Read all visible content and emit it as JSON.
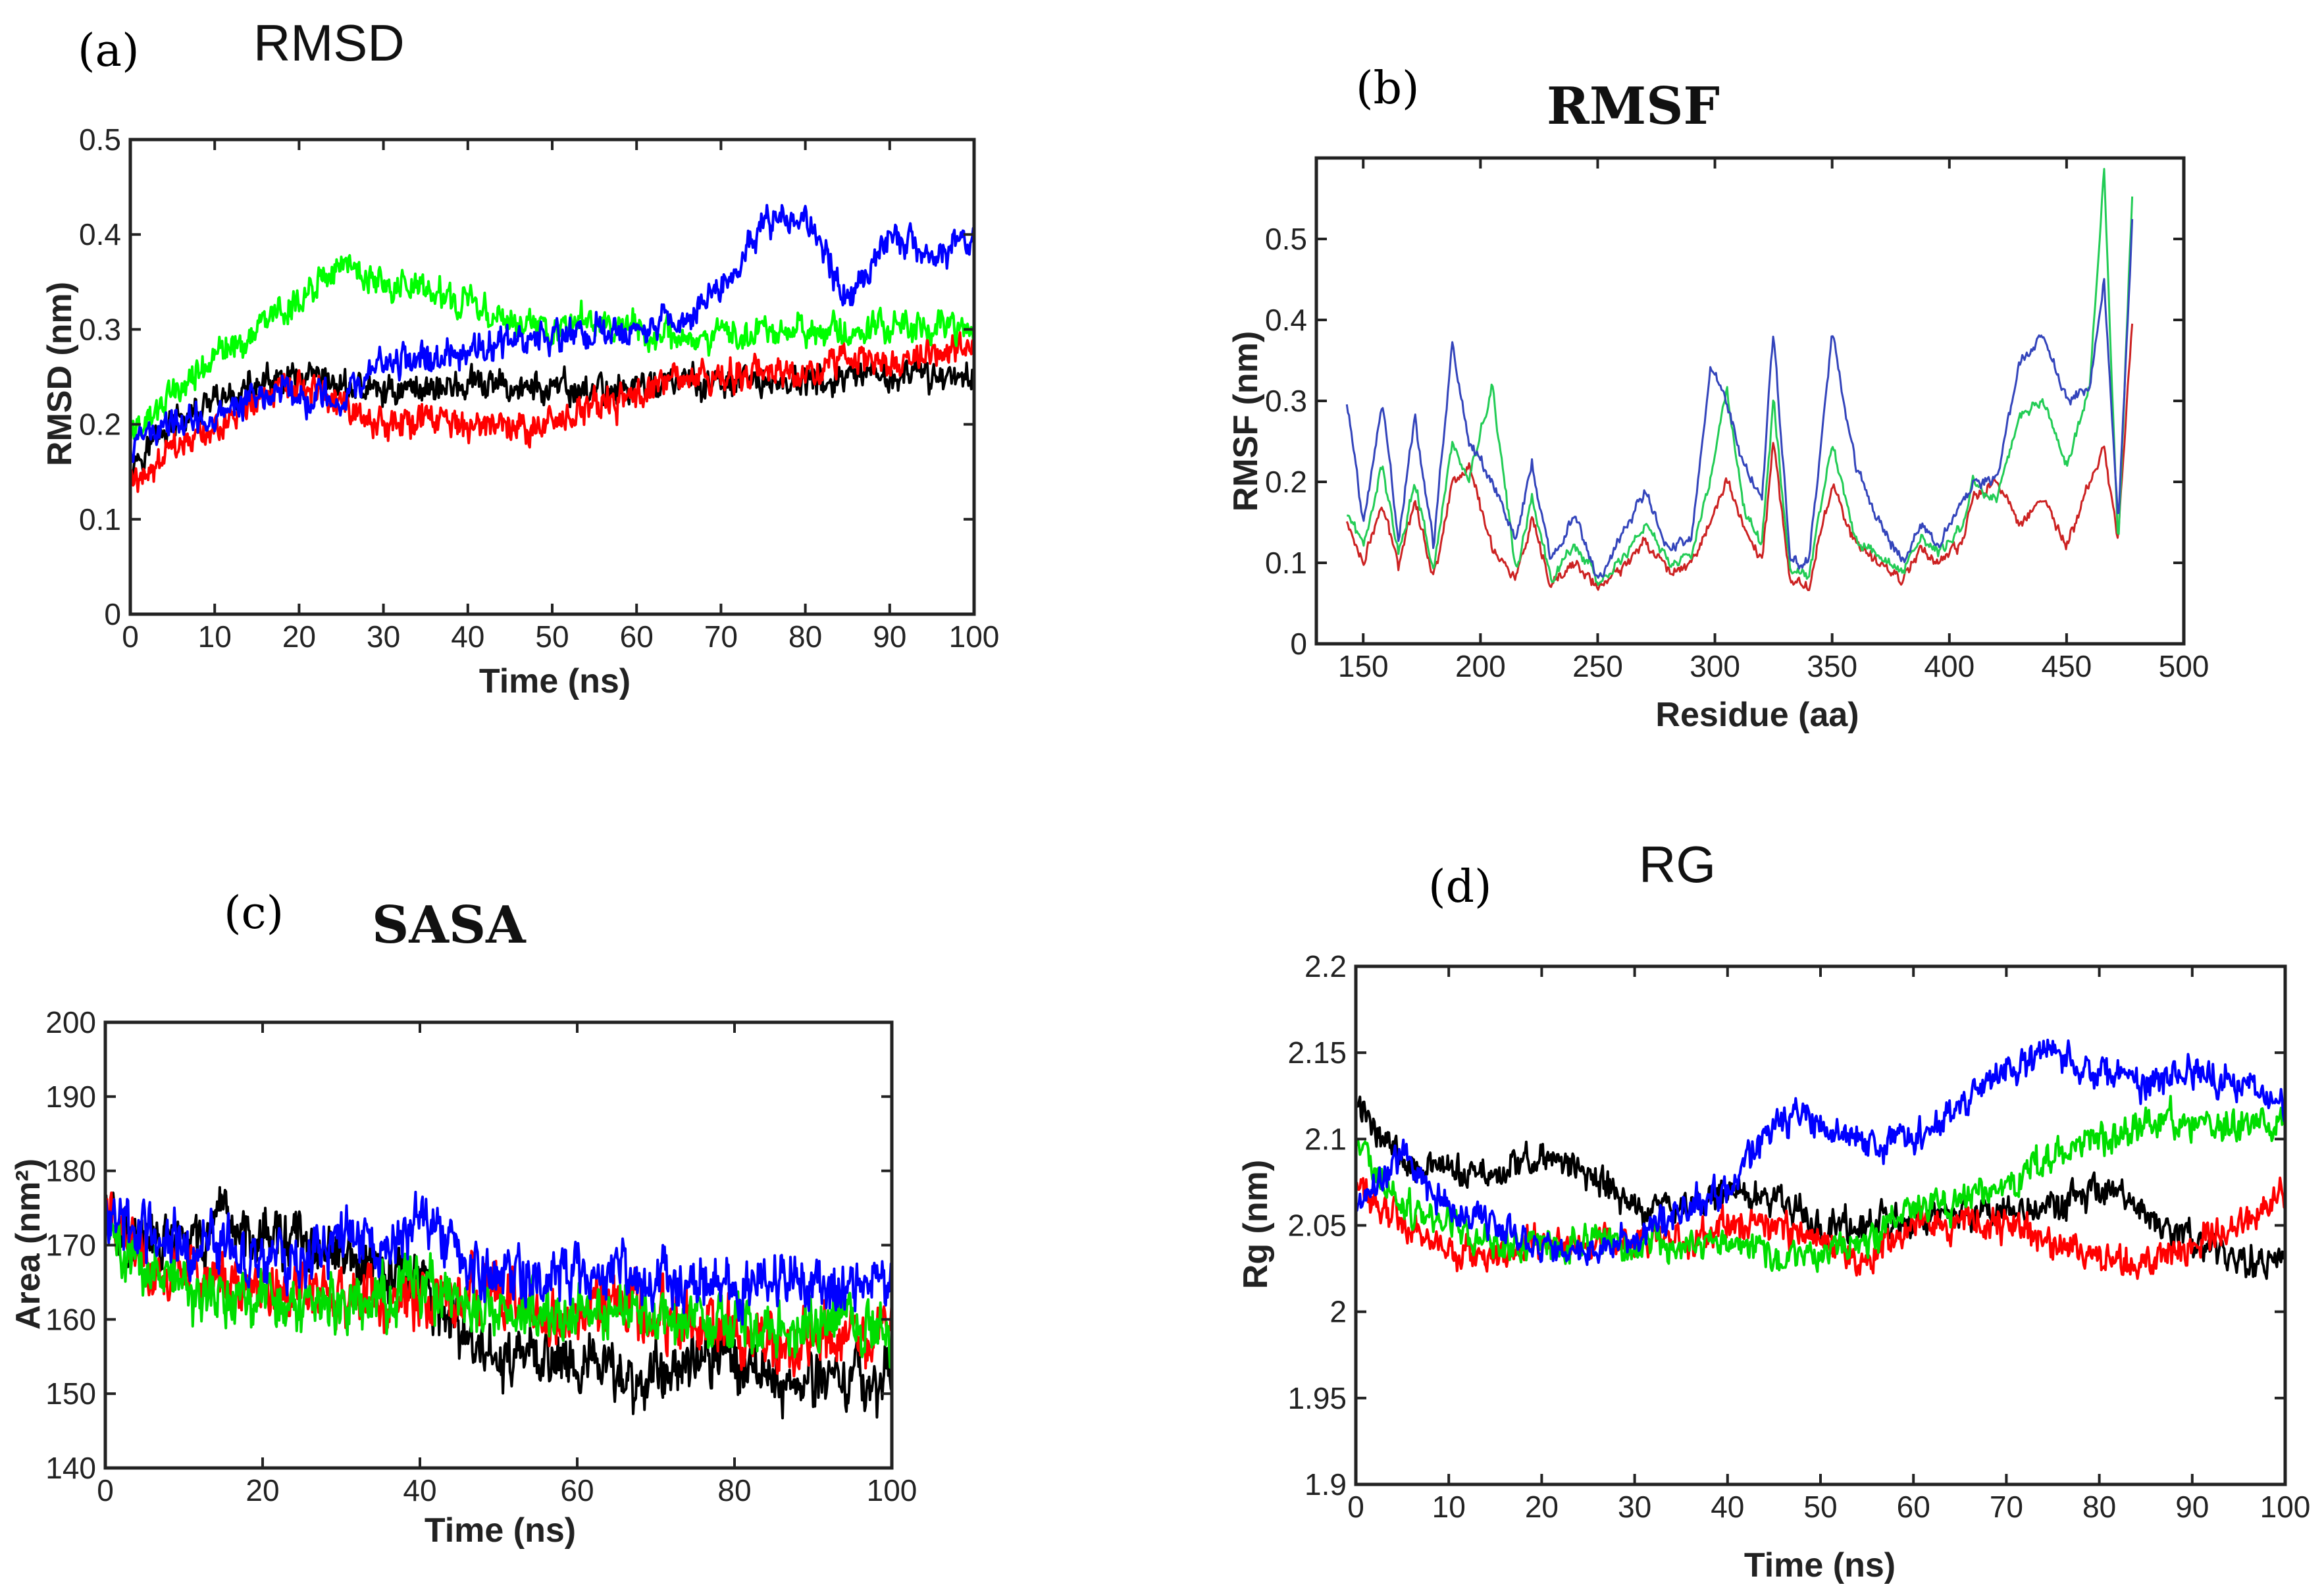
{
  "chart_data": [
    {
      "panel": "(a)",
      "title": "RMSD",
      "type": "line",
      "xlabel": "Time (ns)",
      "ylabel": "RMSD (nm)",
      "xlim": [
        0,
        100
      ],
      "ylim": [
        0,
        0.5
      ],
      "xticks": [
        0,
        10,
        20,
        30,
        40,
        50,
        60,
        70,
        80,
        90,
        100
      ],
      "yticks": [
        0,
        0.1,
        0.2,
        0.3,
        0.4,
        0.5
      ],
      "xtick_labels": [
        "0",
        "10",
        "20",
        "30",
        "40",
        "50",
        "60",
        "70",
        "80",
        "90",
        "100"
      ],
      "ytick_labels": [
        "0",
        "0.1",
        "0.2",
        "0.3",
        "0.4",
        "0.5"
      ],
      "noise": 0.014,
      "series": [
        {
          "name": "black",
          "color": "#000000",
          "x": [
            0,
            5,
            10,
            15,
            20,
            25,
            30,
            35,
            40,
            45,
            50,
            55,
            60,
            65,
            70,
            75,
            80,
            85,
            90,
            95,
            100
          ],
          "y": [
            0.16,
            0.2,
            0.22,
            0.24,
            0.245,
            0.24,
            0.235,
            0.24,
            0.24,
            0.24,
            0.235,
            0.235,
            0.24,
            0.245,
            0.24,
            0.245,
            0.245,
            0.245,
            0.25,
            0.25,
            0.255
          ]
        },
        {
          "name": "red",
          "color": "#ff0000",
          "x": [
            0,
            5,
            10,
            15,
            20,
            25,
            30,
            35,
            40,
            45,
            50,
            55,
            60,
            65,
            70,
            75,
            80,
            85,
            90,
            95,
            100
          ],
          "y": [
            0.14,
            0.17,
            0.19,
            0.23,
            0.235,
            0.22,
            0.2,
            0.205,
            0.2,
            0.19,
            0.2,
            0.22,
            0.23,
            0.25,
            0.245,
            0.255,
            0.26,
            0.265,
            0.27,
            0.275,
            0.28
          ]
        },
        {
          "name": "green",
          "color": "#00ff00",
          "x": [
            0,
            5,
            10,
            15,
            20,
            25,
            30,
            35,
            40,
            45,
            50,
            55,
            60,
            65,
            70,
            75,
            80,
            85,
            90,
            95,
            100
          ],
          "y": [
            0.19,
            0.23,
            0.27,
            0.3,
            0.33,
            0.37,
            0.35,
            0.34,
            0.33,
            0.31,
            0.3,
            0.31,
            0.3,
            0.29,
            0.29,
            0.3,
            0.3,
            0.295,
            0.3,
            0.3,
            0.3
          ]
        },
        {
          "name": "blue",
          "color": "#0000ff",
          "x": [
            0,
            5,
            10,
            15,
            20,
            25,
            30,
            35,
            40,
            45,
            50,
            55,
            60,
            65,
            70,
            75,
            80,
            85,
            90,
            95,
            100
          ],
          "y": [
            0.18,
            0.2,
            0.21,
            0.23,
            0.23,
            0.22,
            0.27,
            0.27,
            0.27,
            0.29,
            0.29,
            0.3,
            0.3,
            0.31,
            0.34,
            0.41,
            0.42,
            0.33,
            0.4,
            0.38,
            0.4
          ]
        }
      ]
    },
    {
      "panel": "(b)",
      "title": "RMSF",
      "type": "line",
      "xlabel": "Residue (aa)",
      "ylabel": "RMSF (nm)",
      "xlim": [
        130,
        500
      ],
      "ylim": [
        0,
        0.6
      ],
      "xticks": [
        150,
        200,
        250,
        300,
        350,
        400,
        450,
        500
      ],
      "yticks": [
        0,
        0.1,
        0.2,
        0.3,
        0.4,
        0.5
      ],
      "xtick_labels": [
        "150",
        "200",
        "250",
        "300",
        "350",
        "400",
        "450",
        "500"
      ],
      "ytick_labels": [
        "0",
        "0.1",
        "0.2",
        "0.3",
        "0.4",
        "0.5"
      ],
      "noise": 0.006,
      "series": [
        {
          "name": "red",
          "color": "#cc2222",
          "x": [
            143,
            150,
            158,
            165,
            172,
            180,
            188,
            195,
            205,
            215,
            222,
            230,
            240,
            250,
            260,
            270,
            280,
            290,
            298,
            305,
            312,
            320,
            325,
            332,
            340,
            350,
            360,
            370,
            380,
            388,
            395,
            405,
            410,
            420,
            430,
            440,
            450,
            460,
            466,
            472,
            478
          ],
          "y": [
            0.15,
            0.1,
            0.17,
            0.1,
            0.18,
            0.08,
            0.2,
            0.22,
            0.12,
            0.08,
            0.15,
            0.07,
            0.1,
            0.07,
            0.09,
            0.13,
            0.09,
            0.1,
            0.15,
            0.2,
            0.15,
            0.1,
            0.25,
            0.08,
            0.07,
            0.2,
            0.12,
            0.1,
            0.08,
            0.12,
            0.1,
            0.12,
            0.18,
            0.2,
            0.15,
            0.18,
            0.12,
            0.2,
            0.24,
            0.13,
            0.4
          ]
        },
        {
          "name": "green",
          "color": "#22cc55",
          "x": [
            143,
            150,
            158,
            165,
            172,
            180,
            188,
            195,
            205,
            215,
            222,
            230,
            240,
            250,
            260,
            270,
            280,
            290,
            298,
            305,
            312,
            320,
            325,
            332,
            340,
            350,
            360,
            370,
            380,
            388,
            395,
            405,
            410,
            420,
            430,
            440,
            450,
            460,
            466,
            472,
            478
          ],
          "y": [
            0.16,
            0.12,
            0.22,
            0.11,
            0.2,
            0.09,
            0.25,
            0.2,
            0.32,
            0.09,
            0.18,
            0.08,
            0.12,
            0.08,
            0.1,
            0.15,
            0.1,
            0.11,
            0.2,
            0.32,
            0.17,
            0.12,
            0.3,
            0.09,
            0.08,
            0.25,
            0.13,
            0.11,
            0.09,
            0.13,
            0.11,
            0.14,
            0.2,
            0.18,
            0.28,
            0.3,
            0.22,
            0.32,
            0.58,
            0.12,
            0.55
          ]
        },
        {
          "name": "blue",
          "color": "#3344bb",
          "x": [
            143,
            150,
            158,
            165,
            172,
            180,
            188,
            195,
            205,
            215,
            222,
            230,
            240,
            250,
            260,
            270,
            280,
            290,
            298,
            305,
            312,
            320,
            325,
            332,
            340,
            350,
            360,
            370,
            380,
            388,
            395,
            405,
            410,
            420,
            430,
            440,
            450,
            460,
            466,
            472,
            478
          ],
          "y": [
            0.3,
            0.15,
            0.3,
            0.13,
            0.28,
            0.12,
            0.37,
            0.25,
            0.2,
            0.13,
            0.22,
            0.1,
            0.16,
            0.08,
            0.13,
            0.19,
            0.12,
            0.13,
            0.34,
            0.3,
            0.22,
            0.18,
            0.39,
            0.1,
            0.1,
            0.38,
            0.22,
            0.15,
            0.1,
            0.15,
            0.12,
            0.17,
            0.2,
            0.2,
            0.35,
            0.38,
            0.3,
            0.32,
            0.45,
            0.15,
            0.52
          ]
        }
      ]
    },
    {
      "panel": "(c)",
      "title": "SASA",
      "type": "line",
      "xlabel": "Time (ns)",
      "ylabel": "Area (nm²)",
      "xlim": [
        0,
        100
      ],
      "ylim": [
        140,
        200
      ],
      "xticks": [
        0,
        20,
        40,
        60,
        80,
        100
      ],
      "yticks": [
        140,
        150,
        160,
        170,
        180,
        190,
        200
      ],
      "xtick_labels": [
        "0",
        "20",
        "40",
        "60",
        "80",
        "100"
      ],
      "ytick_labels": [
        "140",
        "150",
        "160",
        "170",
        "180",
        "190",
        "200"
      ],
      "noise": 3.2,
      "series": [
        {
          "name": "black",
          "color": "#000000",
          "x": [
            0,
            5,
            10,
            15,
            20,
            25,
            30,
            35,
            40,
            45,
            50,
            55,
            60,
            65,
            70,
            75,
            80,
            85,
            90,
            95,
            100
          ],
          "y": [
            175,
            170,
            170,
            172,
            172,
            170,
            168,
            166,
            165,
            158,
            154,
            155,
            155,
            152,
            152,
            156,
            155,
            152,
            152,
            152,
            152
          ]
        },
        {
          "name": "red",
          "color": "#ff0000",
          "x": [
            0,
            5,
            10,
            15,
            20,
            25,
            30,
            35,
            40,
            45,
            50,
            55,
            60,
            65,
            70,
            75,
            80,
            85,
            90,
            95,
            100
          ],
          "y": [
            174,
            168,
            166,
            165,
            164,
            164,
            163,
            163,
            162,
            163,
            164,
            160,
            160,
            162,
            160,
            160,
            158,
            157,
            158,
            157,
            158
          ]
        },
        {
          "name": "green",
          "color": "#00dd00",
          "x": [
            0,
            5,
            10,
            15,
            20,
            25,
            30,
            35,
            40,
            45,
            50,
            55,
            60,
            65,
            70,
            75,
            80,
            85,
            90,
            95,
            100
          ],
          "y": [
            172,
            167,
            164,
            163,
            162,
            163,
            162,
            163,
            164,
            162,
            161,
            161,
            161,
            162,
            160,
            160,
            160,
            159,
            159,
            160,
            158
          ]
        },
        {
          "name": "blue",
          "color": "#0000ff",
          "x": [
            0,
            5,
            10,
            15,
            20,
            25,
            30,
            35,
            40,
            45,
            50,
            55,
            60,
            65,
            70,
            75,
            80,
            85,
            90,
            95,
            100
          ],
          "y": [
            175,
            171,
            170,
            170,
            168,
            168,
            170,
            170,
            172,
            168,
            166,
            166,
            166,
            166,
            165,
            165,
            165,
            165,
            165,
            164,
            164
          ]
        }
      ]
    },
    {
      "panel": "(d)",
      "title": "RG",
      "type": "line",
      "xlabel": "Time (ns)",
      "ylabel": "Rg (nm)",
      "xlim": [
        0,
        100
      ],
      "ylim": [
        1.9,
        2.2
      ],
      "xticks": [
        0,
        10,
        20,
        30,
        40,
        50,
        60,
        70,
        80,
        90,
        100
      ],
      "yticks": [
        1.9,
        1.95,
        2.0,
        2.05,
        2.1,
        2.15,
        2.2
      ],
      "xtick_labels": [
        "0",
        "10",
        "20",
        "30",
        "40",
        "50",
        "60",
        "70",
        "80",
        "90",
        "100"
      ],
      "ytick_labels": [
        "1.9",
        "1.95",
        "2",
        "2.05",
        "2.1",
        "2.15",
        "2.2"
      ],
      "noise": 0.008,
      "series": [
        {
          "name": "black",
          "color": "#000000",
          "x": [
            0,
            5,
            10,
            15,
            20,
            25,
            30,
            35,
            40,
            45,
            50,
            55,
            60,
            65,
            70,
            75,
            80,
            85,
            90,
            95,
            100
          ],
          "y": [
            2.12,
            2.09,
            2.08,
            2.08,
            2.09,
            2.08,
            2.06,
            2.06,
            2.07,
            2.065,
            2.05,
            2.05,
            2.05,
            2.055,
            2.06,
            2.06,
            2.07,
            2.055,
            2.04,
            2.03,
            2.03
          ]
        },
        {
          "name": "red",
          "color": "#ff0000",
          "x": [
            0,
            5,
            10,
            15,
            20,
            25,
            30,
            35,
            40,
            45,
            50,
            55,
            60,
            65,
            70,
            75,
            80,
            85,
            90,
            95,
            100
          ],
          "y": [
            2.07,
            2.05,
            2.035,
            2.03,
            2.04,
            2.04,
            2.04,
            2.04,
            2.05,
            2.05,
            2.04,
            2.03,
            2.05,
            2.05,
            2.05,
            2.04,
            2.03,
            2.03,
            2.04,
            2.05,
            2.07
          ]
        },
        {
          "name": "green",
          "color": "#00dd00",
          "x": [
            0,
            5,
            10,
            15,
            20,
            25,
            30,
            35,
            40,
            45,
            50,
            55,
            60,
            65,
            70,
            75,
            80,
            85,
            90,
            95,
            100
          ],
          "y": [
            2.1,
            2.06,
            2.05,
            2.04,
            2.04,
            2.04,
            2.04,
            2.04,
            2.04,
            2.03,
            2.035,
            2.04,
            2.06,
            2.065,
            2.07,
            2.09,
            2.1,
            2.11,
            2.11,
            2.11,
            2.11
          ]
        },
        {
          "name": "blue",
          "color": "#0000ff",
          "x": [
            0,
            5,
            10,
            15,
            20,
            25,
            30,
            35,
            40,
            45,
            50,
            55,
            60,
            65,
            70,
            75,
            80,
            85,
            90,
            95,
            100
          ],
          "y": [
            2.06,
            2.09,
            2.06,
            2.05,
            2.04,
            2.035,
            2.04,
            2.06,
            2.07,
            2.11,
            2.11,
            2.095,
            2.1,
            2.12,
            2.14,
            2.15,
            2.14,
            2.13,
            2.14,
            2.13,
            2.12
          ]
        }
      ]
    }
  ]
}
